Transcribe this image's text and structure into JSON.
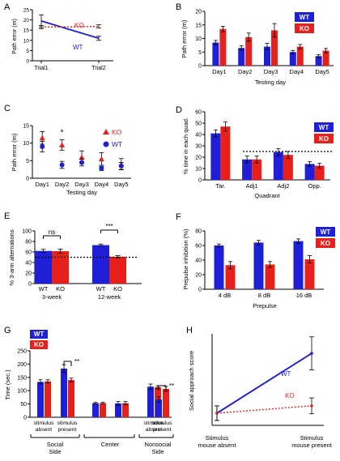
{
  "colors": {
    "wt": "#1f1fd8",
    "ko": "#e8201c",
    "axis": "#000000",
    "ref": "#000000"
  },
  "chart_data": [
    {
      "id": "A",
      "type": "line",
      "panel_label": "A",
      "ylabel": "Path error (m)",
      "ylim": [
        0,
        25
      ],
      "yticks": [
        0,
        5,
        10,
        15,
        20,
        25
      ],
      "categories": [
        "Trial1",
        "Trial2"
      ],
      "series": [
        {
          "name": "WT",
          "key": "wt",
          "values": [
            19.5,
            11
          ],
          "errors": [
            3,
            1
          ],
          "dashed": false
        },
        {
          "name": "KO",
          "key": "ko",
          "values": [
            16.5,
            16.8
          ],
          "errors": [
            0.8,
            0.8
          ],
          "dashed": true
        }
      ]
    },
    {
      "id": "B",
      "type": "bar",
      "panel_label": "B",
      "ylabel": "Path error (m)",
      "xlabel": "Testing day",
      "ylim": [
        0,
        20
      ],
      "yticks": [
        0,
        5,
        10,
        15,
        20
      ],
      "categories": [
        "Day1",
        "Day2",
        "Day3",
        "Day4",
        "Day5"
      ],
      "legend": [
        "WT",
        "KO"
      ],
      "series": [
        {
          "name": "WT",
          "key": "wt",
          "values": [
            8.5,
            6.5,
            7,
            5,
            3.5
          ],
          "errors": [
            0.8,
            0.8,
            1.2,
            0.6,
            0.5
          ]
        },
        {
          "name": "KO",
          "key": "ko",
          "values": [
            13.5,
            10.5,
            13,
            7,
            5.5
          ],
          "errors": [
            1,
            1.5,
            2.5,
            0.8,
            0.8
          ]
        }
      ]
    },
    {
      "id": "C",
      "type": "scatter",
      "panel_label": "C",
      "ylabel": "Path error (m)",
      "xlabel": "Testing day",
      "ylim": [
        0,
        15
      ],
      "yticks": [
        0,
        5,
        10,
        15
      ],
      "categories": [
        "Day1",
        "Day2",
        "Day3",
        "Day4",
        "Day5"
      ],
      "legend": [
        "KO",
        "WT"
      ],
      "annotations": [
        {
          "text": "*",
          "category": "Day2",
          "y": 12.3
        }
      ],
      "series": [
        {
          "name": "KO",
          "key": "ko",
          "marker": "triangle",
          "values": [
            11.5,
            9.5,
            6,
            5.5,
            4
          ],
          "errors": [
            1.8,
            1.5,
            1.8,
            1.8,
            1.6
          ]
        },
        {
          "name": "WT",
          "key": "wt",
          "marker": "circle",
          "values": [
            9,
            3.8,
            4.5,
            2.8,
            3.5
          ],
          "errors": [
            1.5,
            1,
            1,
            0.6,
            1
          ]
        }
      ]
    },
    {
      "id": "D",
      "type": "bar",
      "panel_label": "D",
      "ylabel": "% time in each quad.",
      "xlabel": "Quadrant",
      "ylim": [
        0,
        60
      ],
      "yticks": [
        0,
        10,
        20,
        30,
        40,
        50,
        60
      ],
      "categories": [
        "Tar.",
        "Adj1",
        "Adj2",
        "Opp."
      ],
      "legend": [
        "WT",
        "KO"
      ],
      "reference_line": 25,
      "series": [
        {
          "name": "WT",
          "key": "wt",
          "values": [
            41,
            18,
            24.5,
            14
          ],
          "errors": [
            3,
            3,
            3,
            2
          ]
        },
        {
          "name": "KO",
          "key": "ko",
          "values": [
            47,
            18,
            22,
            12.5
          ],
          "errors": [
            4,
            3,
            3,
            2
          ]
        }
      ]
    },
    {
      "id": "E",
      "type": "bar",
      "panel_label": "E",
      "ylabel": "% 3-arm alternations",
      "ylim": [
        0,
        100
      ],
      "yticks": [
        0,
        20,
        40,
        60,
        80,
        100
      ],
      "groups": [
        {
          "label": "3-week",
          "bars": [
            {
              "name": "WT",
              "key": "wt",
              "value": 62,
              "error": 3
            },
            {
              "name": "KO",
              "key": "ko",
              "value": 61.5,
              "error": 4
            }
          ],
          "significance": "ns"
        },
        {
          "label": "12-week",
          "bars": [
            {
              "name": "WT",
              "key": "wt",
              "value": 73,
              "error": 2
            },
            {
              "name": "KO",
              "key": "ko",
              "value": 51,
              "error": 2
            }
          ],
          "significance": "***"
        }
      ],
      "reference_line": 50
    },
    {
      "id": "F",
      "type": "bar",
      "panel_label": "F",
      "ylabel": "Prepulse inhibition (%)",
      "xlabel": "Prepulse",
      "ylim": [
        0,
        80
      ],
      "yticks": [
        0,
        20,
        40,
        60,
        80
      ],
      "categories": [
        "4 dB",
        "8 dB",
        "16 dB"
      ],
      "legend": [
        "WT",
        "KO"
      ],
      "series": [
        {
          "name": "WT",
          "key": "wt",
          "values": [
            60,
            64,
            66
          ],
          "errors": [
            2,
            3,
            3
          ]
        },
        {
          "name": "KO",
          "key": "ko",
          "values": [
            33,
            34,
            41
          ],
          "errors": [
            5,
            4,
            5
          ]
        }
      ]
    },
    {
      "id": "G",
      "type": "bar",
      "panel_label": "G",
      "ylabel": "Time (sec.)",
      "ylim": [
        0,
        250
      ],
      "yticks": [
        0,
        50,
        100,
        150,
        200,
        250
      ],
      "legend": [
        "WT",
        "KO"
      ],
      "categories": [
        "stimulus absent",
        "stimulus present",
        "",
        "",
        "stimulus absent",
        "stimulus present"
      ],
      "category_labels": [
        [
          "stimulus",
          "absent"
        ],
        [
          "stimulus",
          "present"
        ],
        [
          "",
          ""
        ],
        [
          "",
          ""
        ],
        [
          "stimulus",
          "absent"
        ],
        [
          "stimulus",
          "present"
        ]
      ],
      "sides": [
        "Social Side",
        "Center",
        "Nonsocial Side"
      ],
      "side_labels": [
        [
          "Social",
          "Side"
        ],
        [
          "Center"
        ],
        [
          "Nonsocial",
          "Side"
        ]
      ],
      "significance": [
        {
          "text": "**",
          "category_index": 1
        },
        {
          "text": "**",
          "category_index": 5
        }
      ],
      "series": [
        {
          "name": "WT",
          "key": "wt",
          "values": [
            133,
            183,
            53,
            52,
            115,
            67
          ],
          "errors": [
            8,
            15,
            3,
            7,
            10,
            10
          ]
        },
        {
          "name": "KO",
          "key": "ko",
          "values": [
            135,
            140,
            53,
            53,
            113,
            107
          ],
          "errors": [
            6,
            7,
            3,
            6,
            6,
            9
          ]
        }
      ]
    },
    {
      "id": "H",
      "type": "line",
      "panel_label": "H",
      "ylabel": "Social approach score",
      "ylim": [
        0,
        150
      ],
      "categories": [
        "Stimulus mouse absent",
        "Stimulus mouse present"
      ],
      "category_labels": [
        [
          "Stimulus",
          "mouse absent"
        ],
        [
          "Stimulus",
          "mouse present"
        ]
      ],
      "series": [
        {
          "name": "WT",
          "key": "wt",
          "values": [
            20,
            118
          ],
          "errors": [
            12,
            27
          ],
          "dashed": false
        },
        {
          "name": "KO",
          "key": "ko",
          "values": [
            20,
            32
          ],
          "errors": [
            12,
            13
          ],
          "dashed": true
        }
      ]
    }
  ]
}
